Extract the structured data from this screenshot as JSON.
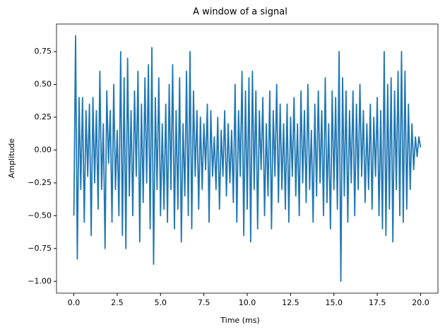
{
  "chart_data": {
    "type": "line",
    "title": "A window of a signal",
    "xlabel": "Time (ms)",
    "ylabel": "Amplitude",
    "color": "#1f77b4",
    "x": [
      0,
      0.1,
      0.2,
      0.3,
      0.4,
      0.5,
      0.6,
      0.7,
      0.8,
      0.9,
      1,
      1.1,
      1.2,
      1.3,
      1.4,
      1.5,
      1.6,
      1.7,
      1.8,
      1.9,
      2,
      2.1,
      2.2,
      2.3,
      2.4,
      2.5,
      2.6,
      2.7,
      2.8,
      2.9,
      3,
      3.1,
      3.2,
      3.3,
      3.4,
      3.5,
      3.6,
      3.7,
      3.8,
      3.9,
      4,
      4.1,
      4.2,
      4.3,
      4.4,
      4.5,
      4.6,
      4.7,
      4.8,
      4.9,
      5,
      5.1,
      5.2,
      5.3,
      5.4,
      5.5,
      5.6,
      5.7,
      5.8,
      5.9,
      6,
      6.1,
      6.2,
      6.3,
      6.4,
      6.5,
      6.6,
      6.7,
      6.8,
      6.9,
      7,
      7.1,
      7.2,
      7.3,
      7.4,
      7.5,
      7.6,
      7.7,
      7.8,
      7.9,
      8,
      8.1,
      8.2,
      8.3,
      8.4,
      8.5,
      8.6,
      8.7,
      8.8,
      8.9,
      9,
      9.1,
      9.2,
      9.3,
      9.4,
      9.5,
      9.6,
      9.7,
      9.8,
      9.9,
      10,
      10.1,
      10.2,
      10.3,
      10.4,
      10.5,
      10.6,
      10.7,
      10.8,
      10.9,
      11,
      11.1,
      11.2,
      11.3,
      11.4,
      11.5,
      11.6,
      11.7,
      11.8,
      11.9,
      12,
      12.1,
      12.2,
      12.3,
      12.4,
      12.5,
      12.6,
      12.7,
      12.8,
      12.9,
      13,
      13.1,
      13.2,
      13.3,
      13.4,
      13.5,
      13.6,
      13.7,
      13.8,
      13.9,
      14,
      14.1,
      14.2,
      14.3,
      14.4,
      14.5,
      14.6,
      14.7,
      14.8,
      14.9,
      15,
      15.1,
      15.2,
      15.3,
      15.4,
      15.5,
      15.6,
      15.7,
      15.8,
      15.9,
      16,
      16.1,
      16.2,
      16.3,
      16.4,
      16.5,
      16.6,
      16.7,
      16.8,
      16.9,
      17,
      17.1,
      17.2,
      17.3,
      17.4,
      17.5,
      17.6,
      17.7,
      17.8,
      17.9,
      18,
      18.1,
      18.2,
      18.3,
      18.4,
      18.5,
      18.6,
      18.7,
      18.8,
      18.9,
      19,
      19.1,
      19.2,
      19.3,
      19.4,
      19.5,
      19.6,
      19.7,
      19.8,
      19.9,
      20
    ],
    "values": [
      -0.5,
      0.87,
      -0.83,
      0.4,
      -0.3,
      0.4,
      -0.55,
      0.3,
      -0.2,
      0.35,
      -0.65,
      0.4,
      -0.25,
      0.3,
      -0.45,
      0.6,
      -0.3,
      0.2,
      -0.75,
      0.45,
      -0.1,
      0.3,
      -0.55,
      0.5,
      -0.3,
      0.15,
      -0.5,
      0.75,
      -0.65,
      0.55,
      -0.75,
      0.7,
      -0.35,
      0.3,
      -0.5,
      0.45,
      -0.2,
      0.6,
      -0.7,
      0.35,
      -0.4,
      0.55,
      -0.25,
      0.65,
      -0.6,
      0.78,
      -0.87,
      0.4,
      -0.3,
      0.55,
      -0.5,
      0.2,
      -0.45,
      0.35,
      -0.55,
      0.5,
      -0.3,
      0.65,
      -0.6,
      0.3,
      -0.45,
      0.55,
      -0.7,
      0.2,
      -0.35,
      0.6,
      -0.5,
      0.75,
      -0.6,
      0.45,
      -0.2,
      0.3,
      -0.45,
      0.25,
      -0.3,
      0.2,
      -0.15,
      0.35,
      -0.55,
      0.3,
      -0.2,
      0.1,
      -0.3,
      0.25,
      -0.45,
      0.15,
      -0.2,
      0.3,
      -0.35,
      0.2,
      -0.25,
      0.15,
      -0.4,
      0.5,
      -0.55,
      0.3,
      -0.2,
      0.6,
      -0.65,
      0.45,
      -0.45,
      0.55,
      -0.7,
      0.6,
      -0.3,
      0.45,
      -0.6,
      0.3,
      -0.15,
      0.4,
      -0.5,
      0.2,
      -0.35,
      0.45,
      -0.6,
      0.3,
      -0.2,
      0.5,
      -0.4,
      0.35,
      -0.3,
      0.2,
      -0.45,
      0.35,
      -0.55,
      0.25,
      -0.2,
      0.4,
      -0.35,
      0.2,
      -0.5,
      0.45,
      -0.25,
      0.3,
      -0.4,
      0.5,
      -0.3,
      0.15,
      -0.55,
      0.35,
      -0.35,
      0.45,
      -0.25,
      0.3,
      -0.5,
      0.55,
      -0.4,
      0.2,
      -0.6,
      0.45,
      -0.3,
      0.4,
      -0.45,
      0.75,
      -1.0,
      0.55,
      -0.35,
      0.45,
      -0.55,
      0.3,
      -0.25,
      0.45,
      -0.5,
      0.35,
      -0.3,
      0.5,
      -0.2,
      0.3,
      -0.4,
      0.2,
      -0.3,
      0.35,
      -0.45,
      0.25,
      -0.2,
      0.4,
      -0.5,
      0.3,
      -0.6,
      0.75,
      -0.65,
      0.5,
      -0.45,
      0.55,
      -0.7,
      0.45,
      -0.3,
      0.6,
      -0.5,
      0.75,
      -0.55,
      0.6,
      -0.45,
      0.35,
      -0.3,
      0.2,
      -0.15,
      0.1,
      -0.05,
      0.1,
      0.02
    ],
    "xlim": [
      -1,
      21
    ],
    "ylim": [
      -1.09,
      0.96
    ],
    "xticks": [
      {
        "value": 0,
        "label": "0.0"
      },
      {
        "value": 2.5,
        "label": "2.5"
      },
      {
        "value": 5,
        "label": "5.0"
      },
      {
        "value": 7.5,
        "label": "7.5"
      },
      {
        "value": 10,
        "label": "10.0"
      },
      {
        "value": 12.5,
        "label": "12.5"
      },
      {
        "value": 15,
        "label": "15.0"
      },
      {
        "value": 17.5,
        "label": "17.5"
      },
      {
        "value": 20,
        "label": "20.0"
      }
    ],
    "yticks": [
      {
        "value": -1,
        "label": "−1.00"
      },
      {
        "value": -0.75,
        "label": "−0.75"
      },
      {
        "value": -0.5,
        "label": "−0.50"
      },
      {
        "value": -0.25,
        "label": "−0.25"
      },
      {
        "value": 0,
        "label": "0.00"
      },
      {
        "value": 0.25,
        "label": "0.25"
      },
      {
        "value": 0.5,
        "label": "0.50"
      },
      {
        "value": 0.75,
        "label": "0.75"
      }
    ],
    "grid": false
  }
}
